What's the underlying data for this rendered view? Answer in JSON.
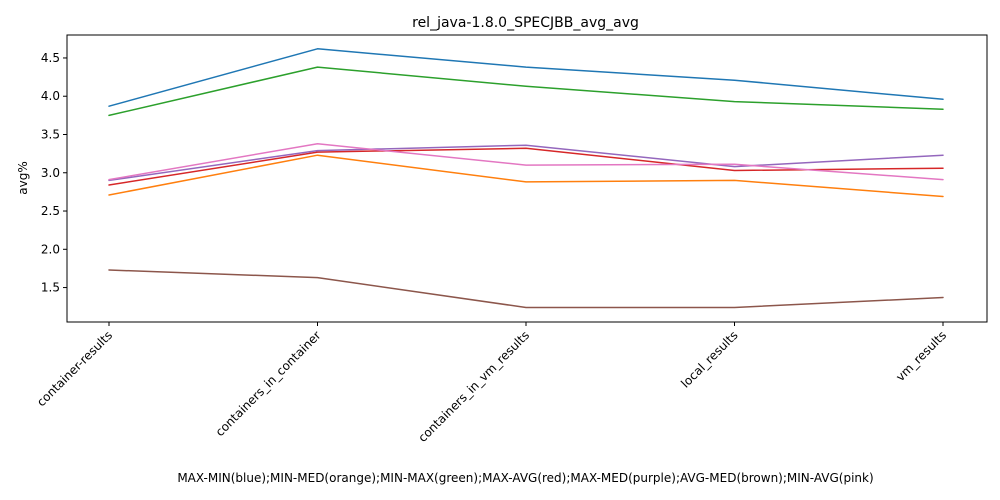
{
  "chart_data": {
    "type": "line",
    "title": "rel_java-1.8.0_SPECJBB_avg_avg",
    "xlabel": "MAX-MIN(blue);MIN-MED(orange);MIN-MAX(green);MAX-AVG(red);MAX-MED(purple);AVG-MED(brown);MIN-AVG(pink)",
    "ylabel": "avg%",
    "categories": [
      "container-results",
      "containers_in_container",
      "containers_in_vm_results",
      "local_results",
      "vm_results"
    ],
    "ylim": [
      1.05,
      4.8
    ],
    "yticks": [
      1.5,
      2.0,
      2.5,
      3.0,
      3.5,
      4.0,
      4.5
    ],
    "grid": false,
    "series": [
      {
        "color": "#1f77b4",
        "values": [
          3.87,
          4.62,
          4.38,
          4.21,
          3.96
        ]
      },
      {
        "color": "#ff7f0e",
        "values": [
          2.71,
          3.23,
          2.88,
          2.9,
          2.69
        ]
      },
      {
        "color": "#2ca02c",
        "values": [
          3.75,
          4.38,
          4.13,
          3.93,
          3.83
        ]
      },
      {
        "color": "#d62728",
        "values": [
          2.84,
          3.27,
          3.32,
          3.03,
          3.06
        ]
      },
      {
        "color": "#9467bd",
        "values": [
          2.9,
          3.29,
          3.36,
          3.08,
          3.23
        ]
      },
      {
        "color": "#8c564b",
        "values": [
          1.73,
          1.63,
          1.24,
          1.24,
          1.37
        ]
      },
      {
        "color": "#e377c2",
        "values": [
          2.91,
          3.38,
          3.1,
          3.11,
          2.91
        ]
      }
    ]
  }
}
